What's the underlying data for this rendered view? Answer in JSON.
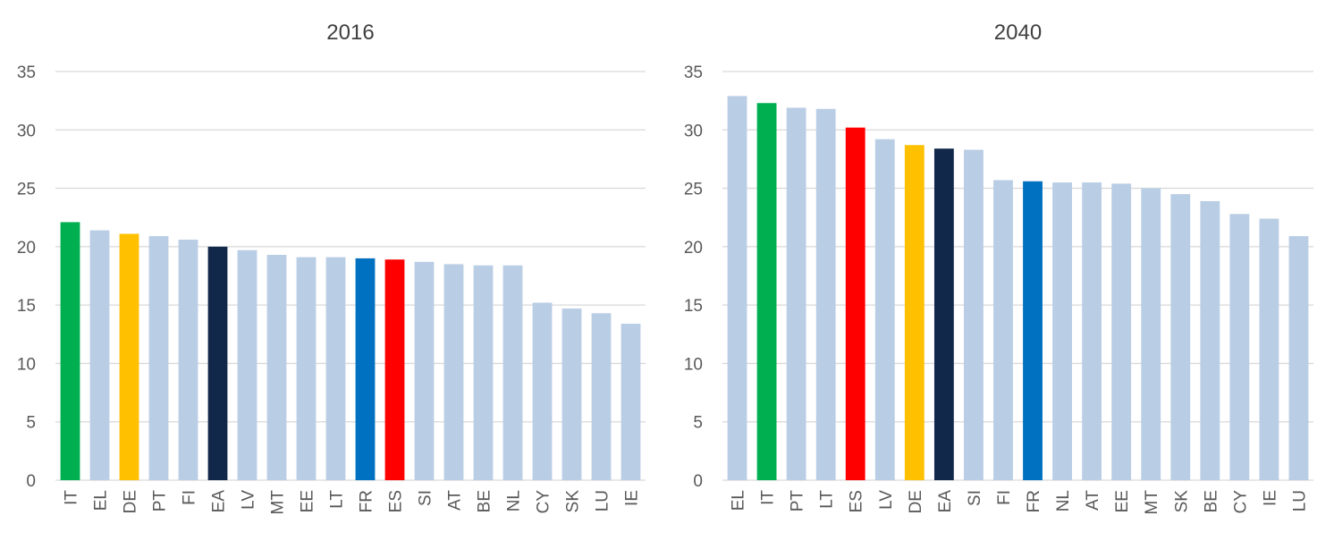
{
  "chart_data": [
    {
      "type": "bar",
      "title": "2016",
      "xlabel": "",
      "ylabel": "",
      "ylim": [
        0,
        35
      ],
      "yticks": [
        0,
        5,
        10,
        15,
        20,
        25,
        30,
        35
      ],
      "grid": true,
      "categories": [
        "IT",
        "EL",
        "DE",
        "PT",
        "FI",
        "EA",
        "LV",
        "MT",
        "EE",
        "LT",
        "FR",
        "ES",
        "SI",
        "AT",
        "BE",
        "NL",
        "CY",
        "SK",
        "LU",
        "IE"
      ],
      "values": [
        22.1,
        21.4,
        21.1,
        20.9,
        20.6,
        20.0,
        19.7,
        19.3,
        19.1,
        19.1,
        19.0,
        18.9,
        18.7,
        18.5,
        18.4,
        18.4,
        15.2,
        14.7,
        14.3,
        13.4
      ],
      "colors": [
        "#00b050",
        "#b9cde5",
        "#ffc000",
        "#b9cde5",
        "#b9cde5",
        "#11284b",
        "#b9cde5",
        "#b9cde5",
        "#b9cde5",
        "#b9cde5",
        "#0070c0",
        "#ff0000",
        "#b9cde5",
        "#b9cde5",
        "#b9cde5",
        "#b9cde5",
        "#b9cde5",
        "#b9cde5",
        "#b9cde5",
        "#b9cde5"
      ]
    },
    {
      "type": "bar",
      "title": "2040",
      "xlabel": "",
      "ylabel": "",
      "ylim": [
        0,
        35
      ],
      "yticks": [
        0,
        5,
        10,
        15,
        20,
        25,
        30,
        35
      ],
      "grid": true,
      "categories": [
        "EL",
        "IT",
        "PT",
        "LT",
        "ES",
        "LV",
        "DE",
        "EA",
        "SI",
        "FI",
        "FR",
        "NL",
        "AT",
        "EE",
        "MT",
        "SK",
        "BE",
        "CY",
        "IE",
        "LU"
      ],
      "values": [
        32.9,
        32.3,
        31.9,
        31.8,
        30.2,
        29.2,
        28.7,
        28.4,
        28.3,
        25.7,
        25.6,
        25.5,
        25.5,
        25.4,
        25.0,
        24.5,
        23.9,
        22.8,
        22.4,
        20.9
      ],
      "colors": [
        "#b9cde5",
        "#00b050",
        "#b9cde5",
        "#b9cde5",
        "#ff0000",
        "#b9cde5",
        "#ffc000",
        "#11284b",
        "#b9cde5",
        "#b9cde5",
        "#0070c0",
        "#b9cde5",
        "#b9cde5",
        "#b9cde5",
        "#b9cde5",
        "#b9cde5",
        "#b9cde5",
        "#b9cde5",
        "#b9cde5",
        "#b9cde5"
      ]
    }
  ]
}
